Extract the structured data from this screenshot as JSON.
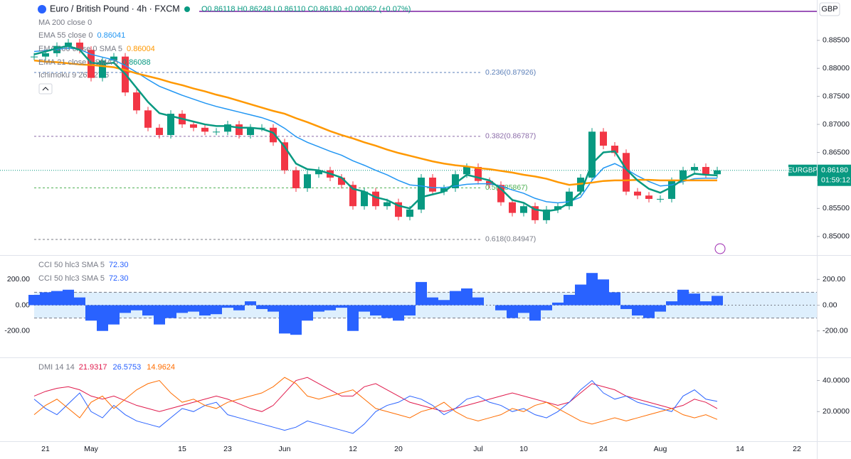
{
  "header": {
    "title": "Euro / British Pound · 4h · FXCM",
    "ohlc": "O0.86118 H0.86248 L0.86110 C0.86180 +0.00062 (+0.07%)",
    "currency": "GBP",
    "symbol": "EURGBP",
    "countdown": "01:59:12",
    "indicators": [
      "MA 200 close 0",
      "Ichimoku 9 26 52 26"
    ]
  },
  "chart_data": [
    {
      "type": "candlestick",
      "categories": [
        null,
        "21",
        null,
        null,
        null,
        "May",
        null,
        null,
        null,
        null,
        null,
        null,
        null,
        "15",
        null,
        null,
        null,
        "23",
        null,
        null,
        null,
        null,
        "Jun",
        null,
        null,
        null,
        null,
        null,
        "12",
        null,
        null,
        null,
        "20",
        null,
        null,
        null,
        null,
        null,
        null,
        "Jul",
        null,
        null,
        null,
        "10",
        null,
        null,
        null,
        null,
        null,
        null,
        "24",
        null,
        null,
        null,
        null,
        "Aug",
        null,
        null,
        null,
        null,
        null,
        null,
        "14",
        null,
        null,
        null,
        null,
        "22",
        null
      ],
      "values": [
        0.8821,
        0.8827,
        0.884,
        0.8846,
        0.8833,
        0.8783,
        0.8814,
        0.8821,
        0.8757,
        0.8725,
        0.8694,
        0.8681,
        0.8719,
        0.87,
        0.8694,
        0.8687,
        0.8687,
        0.87,
        0.8681,
        0.8694,
        0.8694,
        0.8668,
        0.8618,
        0.8586,
        0.8611,
        0.8618,
        0.8605,
        0.8592,
        0.8554,
        0.858,
        0.8554,
        0.8561,
        0.8535,
        0.8548,
        0.8605,
        0.858,
        0.8586,
        0.8611,
        0.8624,
        0.8599,
        0.8592,
        0.8561,
        0.8542,
        0.8554,
        0.8529,
        0.8548,
        0.8554,
        0.858,
        0.8605,
        0.8687,
        0.8662,
        0.8649,
        0.858,
        0.8573,
        0.8567,
        0.8567,
        0.8599,
        0.8618,
        0.8624,
        0.8611,
        0.8618,
        null,
        null,
        null,
        null,
        null,
        null,
        null,
        null
      ],
      "up_color": "#089981",
      "down_color": "#f23645",
      "current": {
        "value": 0.8618,
        "label": "0.86180"
      },
      "series": [
        {
          "name": "EMA 55 close 0",
          "last": 0.86041,
          "color": "#2196f3",
          "values": [
            0.883,
            0.8832,
            0.8834,
            0.8836,
            0.8834,
            0.8825,
            0.882,
            0.8815,
            0.8805,
            0.8793,
            0.878,
            0.8768,
            0.876,
            0.8752,
            0.8745,
            0.8738,
            0.8732,
            0.8727,
            0.8722,
            0.8717,
            0.8712,
            0.8705,
            0.8693,
            0.8678,
            0.8668,
            0.866,
            0.8652,
            0.8645,
            0.8635,
            0.8627,
            0.8618,
            0.861,
            0.86,
            0.8592,
            0.859,
            0.8587,
            0.8587,
            0.859,
            0.8593,
            0.8594,
            0.8594,
            0.859,
            0.8583,
            0.8577,
            0.8568,
            0.8562,
            0.856,
            0.8562,
            0.857,
            0.86,
            0.8622,
            0.863,
            0.862,
            0.8608,
            0.8598,
            0.859,
            0.8592,
            0.8598,
            0.8603,
            0.8604,
            0.8604,
            null,
            null,
            null,
            null,
            null,
            null,
            null,
            null
          ]
        },
        {
          "name": "EMA 200 close 0 SMA 5",
          "last": 0.86004,
          "color": "#ff9800",
          "values": [
            0.8814,
            0.8812,
            0.8811,
            0.8809,
            0.8807,
            0.8806,
            0.8804,
            0.8802,
            0.8797,
            0.8791,
            0.8786,
            0.8781,
            0.8775,
            0.877,
            0.8764,
            0.8759,
            0.8753,
            0.8748,
            0.8742,
            0.8736,
            0.873,
            0.8724,
            0.8719,
            0.8711,
            0.8704,
            0.8696,
            0.8688,
            0.8681,
            0.8675,
            0.8668,
            0.8662,
            0.8655,
            0.8649,
            0.8644,
            0.8639,
            0.8634,
            0.863,
            0.8627,
            0.8625,
            0.8622,
            0.862,
            0.8617,
            0.8614,
            0.861,
            0.8607,
            0.8603,
            0.8597,
            0.8592,
            0.8594,
            0.8596,
            0.8599,
            0.86,
            0.86,
            0.8601,
            0.8601,
            0.86,
            0.86,
            0.86,
            0.86,
            0.86,
            0.86,
            null,
            null,
            null,
            null,
            null,
            null,
            null,
            null
          ]
        },
        {
          "name": "EMA 21 close 0 SMA 5",
          "last": 0.86088,
          "color": "#089981",
          "values": [
            0.8825,
            0.883,
            0.8836,
            0.884,
            0.8833,
            0.881,
            0.8808,
            0.881,
            0.879,
            0.8765,
            0.874,
            0.872,
            0.8715,
            0.871,
            0.8705,
            0.87,
            0.8697,
            0.8697,
            0.8694,
            0.8694,
            0.8692,
            0.8685,
            0.866,
            0.863,
            0.862,
            0.8618,
            0.8612,
            0.8605,
            0.8585,
            0.858,
            0.857,
            0.8565,
            0.8555,
            0.855,
            0.857,
            0.8575,
            0.858,
            0.8595,
            0.861,
            0.8605,
            0.86,
            0.8585,
            0.8565,
            0.856,
            0.8548,
            0.8545,
            0.8548,
            0.856,
            0.8578,
            0.863,
            0.865,
            0.8652,
            0.862,
            0.86,
            0.8585,
            0.8578,
            0.8588,
            0.8602,
            0.8612,
            0.861,
            0.8609,
            null,
            null,
            null,
            null,
            null,
            null,
            null,
            null
          ]
        }
      ],
      "levels": [
        {
          "value": 0.87926,
          "label": "0.236(0.87926)",
          "color": "#5b7fb8"
        },
        {
          "value": 0.86787,
          "label": "0.382(0.86787)",
          "color": "#8a6aa8"
        },
        {
          "value": 0.85867,
          "label": "0.5(0.85867)",
          "color": "#4caf50"
        },
        {
          "value": 0.84947,
          "label": "0.618(0.84947)",
          "color": "#787b86"
        }
      ],
      "ylim": [
        0.8468,
        0.8922
      ],
      "yticks": [
        {
          "value": 0.85,
          "label": "0.85000"
        },
        {
          "value": 0.855,
          "label": "0.85500"
        },
        {
          "value": 0.86,
          "label": "0.86000"
        },
        {
          "value": 0.865,
          "label": "0.86500"
        },
        {
          "value": 0.87,
          "label": "0.87000"
        },
        {
          "value": 0.875,
          "label": "0.87500"
        },
        {
          "value": 0.88,
          "label": "0.88000"
        },
        {
          "value": 0.885,
          "label": "0.88500"
        }
      ]
    },
    {
      "type": "bar",
      "name": "CCI 50 hlc3 SMA 5",
      "last": {
        "value": 72.3,
        "label": "72.30"
      },
      "color": "#2962ff",
      "values": [
        80,
        100,
        110,
        120,
        60,
        -120,
        -200,
        -150,
        -60,
        -40,
        -80,
        -150,
        -100,
        -60,
        -50,
        -80,
        -70,
        -20,
        -40,
        30,
        -30,
        -50,
        -220,
        -230,
        -120,
        -50,
        -40,
        -20,
        -200,
        -50,
        -80,
        -100,
        -120,
        -80,
        180,
        60,
        40,
        110,
        130,
        60,
        0,
        -40,
        -100,
        -60,
        -120,
        -40,
        20,
        80,
        160,
        250,
        200,
        100,
        -30,
        -80,
        -100,
        -50,
        30,
        120,
        90,
        30,
        72.3,
        null,
        null,
        null,
        null,
        null,
        null,
        null,
        null
      ],
      "band": [
        -100,
        100
      ],
      "ylim": [
        -400,
        378
      ],
      "yticks": [
        {
          "value": 200,
          "label": "200.00"
        },
        {
          "value": 0,
          "label": "0.00"
        },
        {
          "value": -200,
          "label": "-200.00"
        }
      ]
    },
    {
      "type": "line",
      "name": "DMI 14 14",
      "series": [
        {
          "last": 21.9317,
          "color": "#e0194b",
          "values": [
            30,
            33,
            35,
            36,
            34,
            30,
            28,
            30,
            27,
            24,
            22,
            20,
            22,
            24,
            26,
            28,
            30,
            28,
            25,
            22,
            20,
            24,
            32,
            40,
            42,
            38,
            34,
            30,
            30,
            36,
            38,
            34,
            30,
            26,
            24,
            22,
            20,
            22,
            24,
            26,
            28,
            30,
            32,
            30,
            28,
            26,
            24,
            26,
            32,
            38,
            36,
            34,
            30,
            28,
            26,
            24,
            22,
            24,
            28,
            26,
            21.93,
            null,
            null,
            null,
            null,
            null,
            null,
            null,
            null
          ]
        },
        {
          "last": 26.5753,
          "color": "#2962ff",
          "values": [
            28,
            22,
            18,
            25,
            32,
            20,
            16,
            24,
            18,
            14,
            12,
            10,
            16,
            22,
            20,
            24,
            26,
            18,
            16,
            14,
            12,
            10,
            8,
            10,
            14,
            12,
            10,
            8,
            6,
            12,
            20,
            24,
            26,
            30,
            28,
            24,
            18,
            22,
            28,
            30,
            26,
            24,
            20,
            22,
            18,
            16,
            20,
            26,
            34,
            40,
            32,
            28,
            30,
            26,
            24,
            22,
            20,
            30,
            34,
            28,
            26.58,
            null,
            null,
            null,
            null,
            null,
            null,
            null,
            null
          ]
        },
        {
          "last": 14.9624,
          "color": "#ff6d00",
          "values": [
            18,
            24,
            28,
            22,
            16,
            26,
            30,
            22,
            28,
            34,
            38,
            40,
            32,
            26,
            28,
            24,
            22,
            26,
            28,
            30,
            32,
            36,
            42,
            38,
            30,
            28,
            30,
            32,
            34,
            28,
            22,
            20,
            18,
            16,
            20,
            22,
            26,
            20,
            16,
            14,
            16,
            18,
            22,
            20,
            24,
            26,
            22,
            18,
            14,
            12,
            14,
            16,
            14,
            16,
            18,
            20,
            22,
            18,
            16,
            18,
            14.96,
            null,
            null,
            null,
            null,
            null,
            null,
            null,
            null
          ]
        }
      ],
      "ylim": [
        1.4,
        54.4
      ],
      "yticks": [
        {
          "value": 40,
          "label": "40.0000"
        },
        {
          "value": 20,
          "label": "20.0000"
        }
      ]
    }
  ]
}
